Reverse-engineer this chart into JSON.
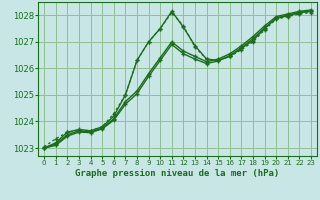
{
  "background_color": "#c8e6e6",
  "grid_color": "#90c090",
  "line_color": "#1a6e1a",
  "title": "Graphe pression niveau de la mer (hPa)",
  "ylim": [
    1022.7,
    1028.5
  ],
  "xlim": [
    -0.5,
    23.5
  ],
  "yticks": [
    1023,
    1024,
    1025,
    1026,
    1027,
    1028
  ],
  "xticks": [
    0,
    1,
    2,
    3,
    4,
    5,
    6,
    7,
    8,
    9,
    10,
    11,
    12,
    13,
    14,
    15,
    16,
    17,
    18,
    19,
    20,
    21,
    22,
    23
  ],
  "line_dotted": [
    1023.05,
    1023.35,
    1023.6,
    1023.65,
    1023.65,
    1023.8,
    1024.3,
    1025.0,
    1026.3,
    1027.0,
    1027.5,
    1028.1,
    1027.6,
    1026.8,
    1026.35,
    1026.3,
    1026.45,
    1026.7,
    1027.0,
    1027.45,
    1027.85,
    1027.95,
    1028.05,
    1028.1
  ],
  "line1": [
    1023.0,
    1023.2,
    1023.6,
    1023.7,
    1023.65,
    1023.8,
    1024.2,
    1025.0,
    1026.3,
    1027.0,
    1027.5,
    1028.15,
    1027.55,
    1026.85,
    1026.35,
    1026.3,
    1026.45,
    1026.75,
    1027.05,
    1027.5,
    1027.9,
    1028.0,
    1028.1,
    1028.15
  ],
  "line2": [
    1023.0,
    1023.15,
    1023.5,
    1023.65,
    1023.6,
    1023.75,
    1024.1,
    1024.75,
    1025.15,
    1025.8,
    1026.4,
    1027.0,
    1026.65,
    1026.45,
    1026.25,
    1026.35,
    1026.55,
    1026.85,
    1027.2,
    1027.6,
    1027.95,
    1028.05,
    1028.15,
    1028.2
  ],
  "line3": [
    1023.0,
    1023.1,
    1023.45,
    1023.6,
    1023.58,
    1023.72,
    1024.05,
    1024.65,
    1025.05,
    1025.7,
    1026.3,
    1026.9,
    1026.55,
    1026.35,
    1026.18,
    1026.28,
    1026.48,
    1026.78,
    1027.12,
    1027.52,
    1027.88,
    1027.98,
    1028.1,
    1028.15
  ]
}
